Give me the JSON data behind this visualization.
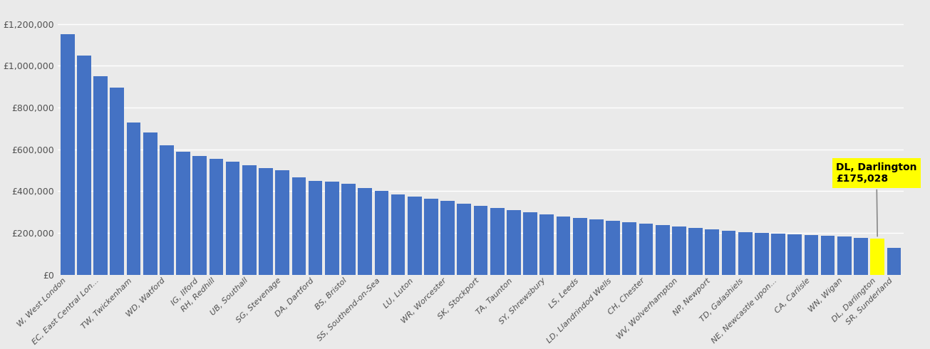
{
  "categories": [
    "W, West London",
    "",
    "EC, East Central Lon...",
    "",
    "TW, Twickenham",
    "",
    "WD, Watford",
    "",
    "IG, Ilford",
    "RH, Redhill",
    "",
    "UB, Southall",
    "",
    "SG, Stevenage",
    "",
    "DA, Dartford",
    "",
    "BS, Bristol",
    "",
    "SS, Southend-on-Sea",
    "",
    "LU, Luton",
    "",
    "WR, Worcester",
    "",
    "SK, Stockport",
    "",
    "TA, Taunton",
    "",
    "SY, Shrewsbury",
    "",
    "LS, Leeds",
    "",
    "LD, Llandrindod Wells",
    "",
    "CH, Chester",
    "",
    "WV, Wolverhampton",
    "",
    "NP, Newport",
    "",
    "TD, Galashiels",
    "",
    "NE, Newcastle upon...",
    "",
    "CA, Carlisle",
    "",
    "WN, Wigan",
    "",
    "DL, Darlington",
    "SR, Sunderland"
  ],
  "values": [
    1150000,
    1050000,
    950000,
    895000,
    730000,
    680000,
    620000,
    590000,
    570000,
    555000,
    540000,
    525000,
    510000,
    500000,
    465000,
    450000,
    445000,
    435000,
    415000,
    400000,
    385000,
    375000,
    365000,
    355000,
    340000,
    330000,
    320000,
    310000,
    300000,
    290000,
    280000,
    272000,
    265000,
    258000,
    252000,
    245000,
    238000,
    230000,
    223000,
    216000,
    210000,
    205000,
    202000,
    198000,
    195000,
    192000,
    188000,
    183000,
    178000,
    175028,
    130000
  ],
  "highlight_label": "DL, Darlington\n£175,028",
  "bar_color": "#4472C4",
  "highlight_bar_color": "#FFFF00",
  "annotation_bg": "#FFFF00",
  "annotation_text_color": "#000000",
  "ylim": [
    0,
    1300000
  ],
  "ytick_values": [
    0,
    200000,
    400000,
    600000,
    800000,
    1000000,
    1200000
  ],
  "background_color": "#EAEAEA",
  "grid_color": "#FFFFFF"
}
